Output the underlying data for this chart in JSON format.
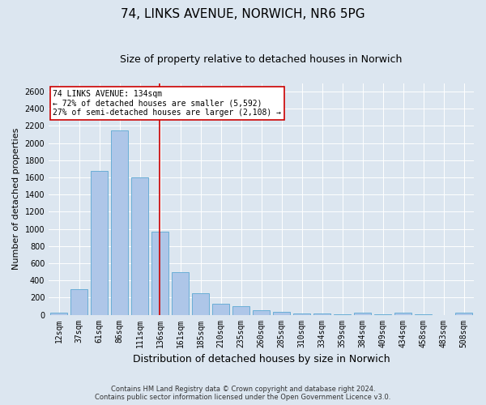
{
  "title": "74, LINKS AVENUE, NORWICH, NR6 5PG",
  "subtitle": "Size of property relative to detached houses in Norwich",
  "xlabel": "Distribution of detached houses by size in Norwich",
  "ylabel": "Number of detached properties",
  "categories": [
    "12sqm",
    "37sqm",
    "61sqm",
    "86sqm",
    "111sqm",
    "136sqm",
    "161sqm",
    "185sqm",
    "210sqm",
    "235sqm",
    "260sqm",
    "285sqm",
    "310sqm",
    "334sqm",
    "359sqm",
    "384sqm",
    "409sqm",
    "434sqm",
    "458sqm",
    "483sqm",
    "508sqm"
  ],
  "values": [
    25,
    300,
    1680,
    2150,
    1600,
    970,
    500,
    248,
    125,
    100,
    50,
    30,
    15,
    18,
    5,
    20,
    5,
    20,
    5,
    0,
    25
  ],
  "bar_color": "#aec6e8",
  "bar_edge_color": "#6aaed6",
  "vline_x_index": 5,
  "vline_color": "#cc0000",
  "annotation_text": "74 LINKS AVENUE: 134sqm\n← 72% of detached houses are smaller (5,592)\n27% of semi-detached houses are larger (2,108) →",
  "annotation_box_color": "#ffffff",
  "annotation_box_edge_color": "#cc0000",
  "ylim": [
    0,
    2700
  ],
  "yticks": [
    0,
    200,
    400,
    600,
    800,
    1000,
    1200,
    1400,
    1600,
    1800,
    2000,
    2200,
    2400,
    2600
  ],
  "background_color": "#dce6f0",
  "plot_bg_color": "#dce6f0",
  "grid_color": "#ffffff",
  "footer_line1": "Contains HM Land Registry data © Crown copyright and database right 2024.",
  "footer_line2": "Contains public sector information licensed under the Open Government Licence v3.0.",
  "title_fontsize": 11,
  "subtitle_fontsize": 9,
  "xlabel_fontsize": 9,
  "ylabel_fontsize": 8,
  "tick_fontsize": 7,
  "annotation_fontsize": 7,
  "footer_fontsize": 6
}
